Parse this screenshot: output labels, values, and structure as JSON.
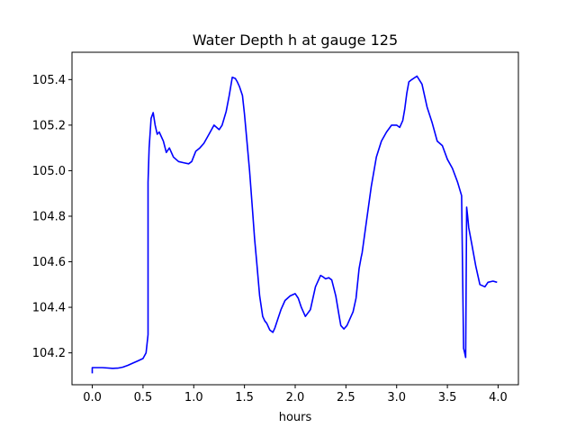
{
  "chart_data": {
    "type": "line",
    "title": "Water Depth h at gauge 125",
    "xlabel": "hours",
    "ylabel": "",
    "xlim": [
      -0.2,
      4.2
    ],
    "ylim": [
      104.06,
      105.52
    ],
    "grid": false,
    "legend": "none",
    "x_ticks": [
      0.0,
      0.5,
      1.0,
      1.5,
      2.0,
      2.5,
      3.0,
      3.5,
      4.0
    ],
    "x_tick_labels": [
      "0.0",
      "0.5",
      "1.0",
      "1.5",
      "2.0",
      "2.5",
      "3.0",
      "3.5",
      "4.0"
    ],
    "y_ticks": [
      104.2,
      104.4,
      104.6,
      104.8,
      105.0,
      105.2,
      105.4
    ],
    "y_tick_labels": [
      "104.2",
      "104.4",
      "104.6",
      "104.8",
      "105.0",
      "105.2",
      "105.4"
    ],
    "series": [
      {
        "color": "#0000ff",
        "x": [
          0.0,
          0.0,
          0.1,
          0.2,
          0.25,
          0.3,
          0.35,
          0.4,
          0.45,
          0.5,
          0.53,
          0.55,
          0.55,
          0.56,
          0.58,
          0.6,
          0.62,
          0.64,
          0.66,
          0.7,
          0.73,
          0.76,
          0.8,
          0.85,
          0.9,
          0.95,
          0.98,
          1.02,
          1.06,
          1.1,
          1.15,
          1.2,
          1.25,
          1.28,
          1.32,
          1.35,
          1.38,
          1.41,
          1.43,
          1.45,
          1.48,
          1.5,
          1.52,
          1.55,
          1.58,
          1.6,
          1.62,
          1.65,
          1.68,
          1.7,
          1.72,
          1.75,
          1.78,
          1.8,
          1.83,
          1.86,
          1.9,
          1.95,
          2.0,
          2.03,
          2.06,
          2.1,
          2.15,
          2.2,
          2.25,
          2.27,
          2.3,
          2.33,
          2.36,
          2.4,
          2.43,
          2.45,
          2.48,
          2.51,
          2.54,
          2.57,
          2.6,
          2.63,
          2.65,
          2.66,
          2.7,
          2.75,
          2.8,
          2.85,
          2.9,
          2.95,
          3.0,
          3.03,
          3.06,
          3.08,
          3.1,
          3.12,
          3.15,
          3.2,
          3.25,
          3.3,
          3.35,
          3.4,
          3.45,
          3.5,
          3.55,
          3.6,
          3.64,
          3.66,
          3.67,
          3.68,
          3.69,
          3.7,
          3.71,
          3.74,
          3.78,
          3.82,
          3.87,
          3.9,
          3.95,
          3.99
        ],
        "y": [
          104.11,
          104.135,
          104.135,
          104.132,
          104.133,
          104.137,
          104.145,
          104.155,
          104.165,
          104.175,
          104.2,
          104.28,
          104.95,
          105.1,
          105.23,
          105.255,
          105.2,
          105.16,
          105.17,
          105.13,
          105.08,
          105.1,
          105.06,
          105.04,
          105.035,
          105.03,
          105.04,
          105.085,
          105.1,
          105.12,
          105.16,
          105.2,
          105.18,
          105.2,
          105.26,
          105.33,
          105.41,
          105.405,
          105.39,
          105.37,
          105.33,
          105.25,
          105.15,
          105.0,
          104.82,
          104.7,
          104.6,
          104.45,
          104.36,
          104.34,
          104.33,
          104.3,
          104.29,
          104.31,
          104.35,
          104.39,
          104.43,
          104.45,
          104.46,
          104.44,
          104.4,
          104.36,
          104.39,
          104.49,
          104.54,
          104.535,
          104.525,
          104.53,
          104.52,
          104.45,
          104.37,
          104.32,
          104.305,
          104.32,
          104.35,
          104.38,
          104.44,
          104.57,
          104.62,
          104.64,
          104.77,
          104.93,
          105.06,
          105.13,
          105.17,
          105.2,
          105.2,
          105.19,
          105.22,
          105.27,
          105.34,
          105.39,
          105.4,
          105.415,
          105.38,
          105.28,
          105.21,
          105.13,
          105.11,
          105.05,
          105.01,
          104.95,
          104.89,
          104.22,
          104.2,
          104.18,
          104.84,
          104.8,
          104.75,
          104.68,
          104.58,
          104.5,
          104.49,
          104.51,
          104.515,
          104.51
        ]
      }
    ]
  }
}
